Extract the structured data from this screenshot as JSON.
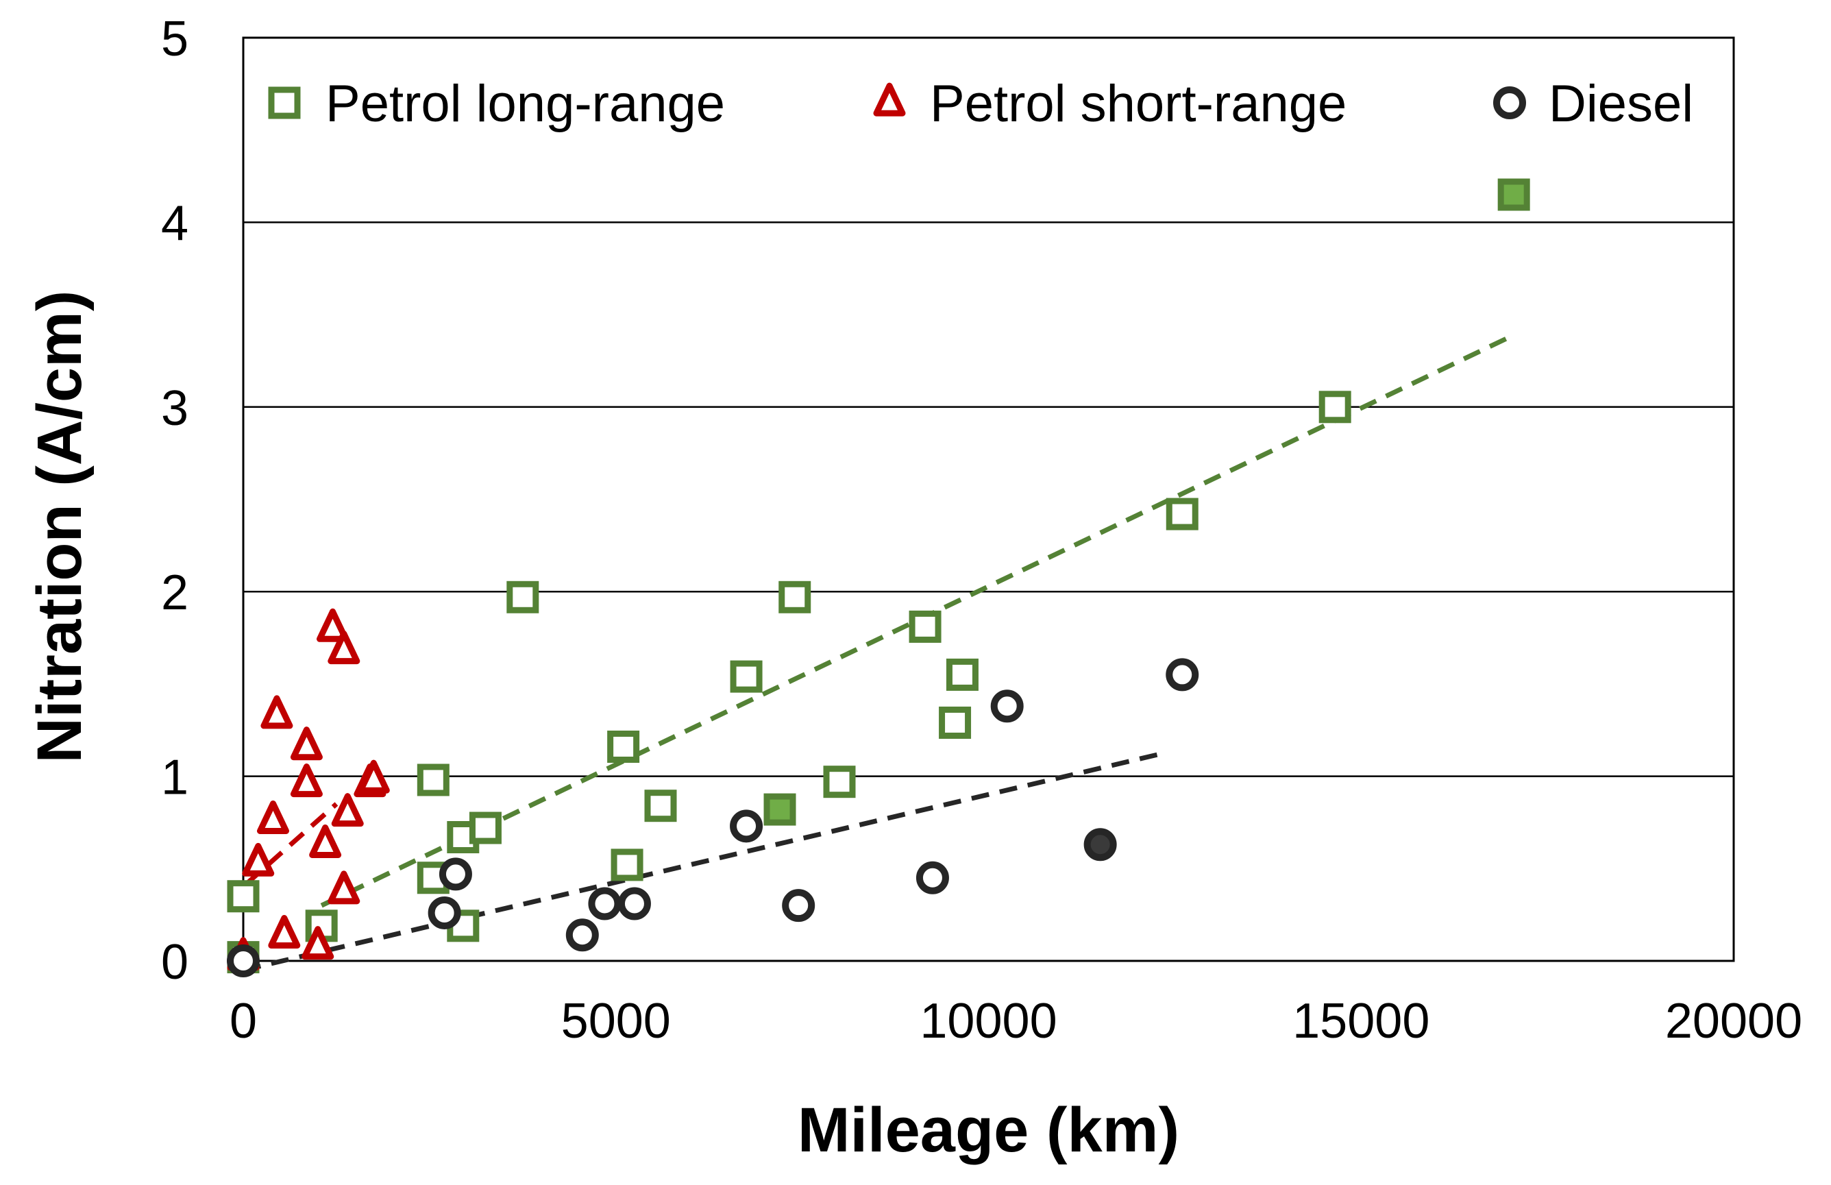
{
  "chart_data": {
    "type": "scatter",
    "title": "",
    "xlabel": "Mileage (km)",
    "ylabel": "Nitration (A/cm)",
    "xlim": [
      0,
      20000
    ],
    "ylim": [
      0,
      5
    ],
    "xticks": [
      "0",
      "5000",
      "10000",
      "15000",
      "20000"
    ],
    "yticks": [
      "0",
      "1",
      "2",
      "3",
      "4",
      "5"
    ],
    "grid": "horizontal",
    "legend_position": "top",
    "colors": {
      "petrol_long": "#548235",
      "petrol_long_fill": "#70ad47",
      "petrol_short": "#c00000",
      "diesel": "#262626",
      "diesel_fill": "#3a3a3a"
    },
    "series": [
      {
        "name": "Petrol long-range",
        "marker": "square",
        "points": [
          {
            "x": 0,
            "y": 0.35
          },
          {
            "x": 0,
            "y": 0.02
          },
          {
            "x": 1050,
            "y": 0.19
          },
          {
            "x": 2550,
            "y": 0.98
          },
          {
            "x": 2550,
            "y": 0.45
          },
          {
            "x": 2950,
            "y": 0.67
          },
          {
            "x": 2950,
            "y": 0.19
          },
          {
            "x": 3250,
            "y": 0.72
          },
          {
            "x": 3750,
            "y": 1.97
          },
          {
            "x": 5100,
            "y": 1.16
          },
          {
            "x": 5150,
            "y": 0.52
          },
          {
            "x": 5600,
            "y": 0.84
          },
          {
            "x": 6750,
            "y": 1.54
          },
          {
            "x": 7200,
            "y": 0.82,
            "filled": true
          },
          {
            "x": 7400,
            "y": 1.97
          },
          {
            "x": 8000,
            "y": 0.97
          },
          {
            "x": 9150,
            "y": 1.81
          },
          {
            "x": 9550,
            "y": 1.29
          },
          {
            "x": 9650,
            "y": 1.55
          },
          {
            "x": 12600,
            "y": 2.42
          },
          {
            "x": 14650,
            "y": 3.0
          },
          {
            "x": 17050,
            "y": 4.15,
            "filled": true
          }
        ],
        "trendline": {
          "x": [
            1050,
            17000
          ],
          "y": [
            0.3,
            3.38
          ]
        }
      },
      {
        "name": "Petrol short-range",
        "marker": "triangle",
        "points": [
          {
            "x": 0,
            "y": 0.02
          },
          {
            "x": 200,
            "y": 0.53
          },
          {
            "x": 400,
            "y": 0.76
          },
          {
            "x": 450,
            "y": 1.33
          },
          {
            "x": 550,
            "y": 0.14
          },
          {
            "x": 850,
            "y": 1.16
          },
          {
            "x": 850,
            "y": 0.96
          },
          {
            "x": 1000,
            "y": 0.08
          },
          {
            "x": 1100,
            "y": 0.63
          },
          {
            "x": 1200,
            "y": 1.8
          },
          {
            "x": 1350,
            "y": 1.68
          },
          {
            "x": 1350,
            "y": 0.38
          },
          {
            "x": 1400,
            "y": 0.8
          },
          {
            "x": 1700,
            "y": 0.96
          },
          {
            "x": 1750,
            "y": 0.98
          }
        ],
        "trendline": {
          "x": [
            50,
            1250
          ],
          "y": [
            0.42,
            0.85
          ]
        }
      },
      {
        "name": "Diesel",
        "marker": "circle",
        "points": [
          {
            "x": 0,
            "y": 0.0
          },
          {
            "x": 2700,
            "y": 0.26
          },
          {
            "x": 2850,
            "y": 0.47
          },
          {
            "x": 4550,
            "y": 0.14
          },
          {
            "x": 4850,
            "y": 0.31
          },
          {
            "x": 5250,
            "y": 0.31
          },
          {
            "x": 6750,
            "y": 0.73
          },
          {
            "x": 7450,
            "y": 0.3
          },
          {
            "x": 9250,
            "y": 0.45
          },
          {
            "x": 10250,
            "y": 1.38
          },
          {
            "x": 11500,
            "y": 0.63,
            "filled": true
          },
          {
            "x": 12600,
            "y": 1.55
          }
        ],
        "trendline": {
          "x": [
            0,
            12300
          ],
          "y": [
            -0.05,
            1.12
          ]
        }
      }
    ]
  }
}
